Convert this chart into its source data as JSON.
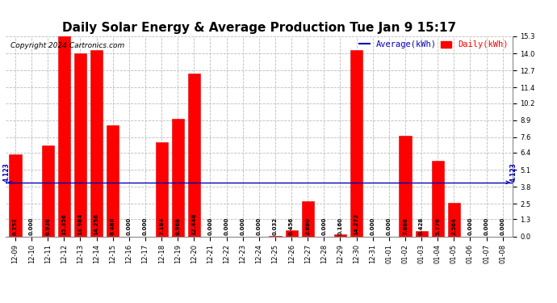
{
  "title": "Daily Solar Energy & Average Production Tue Jan 9 15:17",
  "copyright": "Copyright 2024 Cartronics.com",
  "legend_average": "Average(kWh)",
  "legend_daily": "Daily(kWh)",
  "average_value": 4.123,
  "average_label": "4.123",
  "categories": [
    "12-09",
    "12-10",
    "12-11",
    "12-12",
    "12-13",
    "12-14",
    "12-15",
    "12-16",
    "12-17",
    "12-18",
    "12-19",
    "12-20",
    "12-21",
    "12-22",
    "12-23",
    "12-24",
    "12-25",
    "12-26",
    "12-27",
    "12-28",
    "12-29",
    "12-30",
    "12-31",
    "01-01",
    "01-02",
    "01-03",
    "01-04",
    "01-05",
    "01-06",
    "01-07",
    "01-08"
  ],
  "values": [
    6.252,
    0.0,
    6.936,
    15.356,
    13.984,
    14.256,
    8.48,
    0.0,
    0.0,
    7.184,
    8.968,
    12.448,
    0.0,
    0.0,
    0.0,
    0.0,
    0.032,
    0.456,
    2.68,
    0.0,
    0.16,
    14.272,
    0.0,
    0.0,
    7.668,
    0.428,
    5.776,
    2.564,
    0.0,
    0.0,
    0.0
  ],
  "bar_color": "#ff0000",
  "bar_edge_color": "#dd0000",
  "average_line_color": "#0000bb",
  "grid_color": "#bbbbbb",
  "background_color": "#ffffff",
  "plot_bg_color": "#ffffff",
  "ylim": [
    0.0,
    15.3
  ],
  "yticks": [
    0.0,
    1.3,
    2.5,
    3.8,
    5.1,
    6.4,
    7.6,
    8.9,
    10.2,
    11.4,
    12.7,
    14.0,
    15.3
  ],
  "title_fontsize": 11,
  "legend_fontsize": 7.5,
  "tick_fontsize": 6,
  "value_label_fontsize": 5,
  "copyright_fontsize": 6.5
}
